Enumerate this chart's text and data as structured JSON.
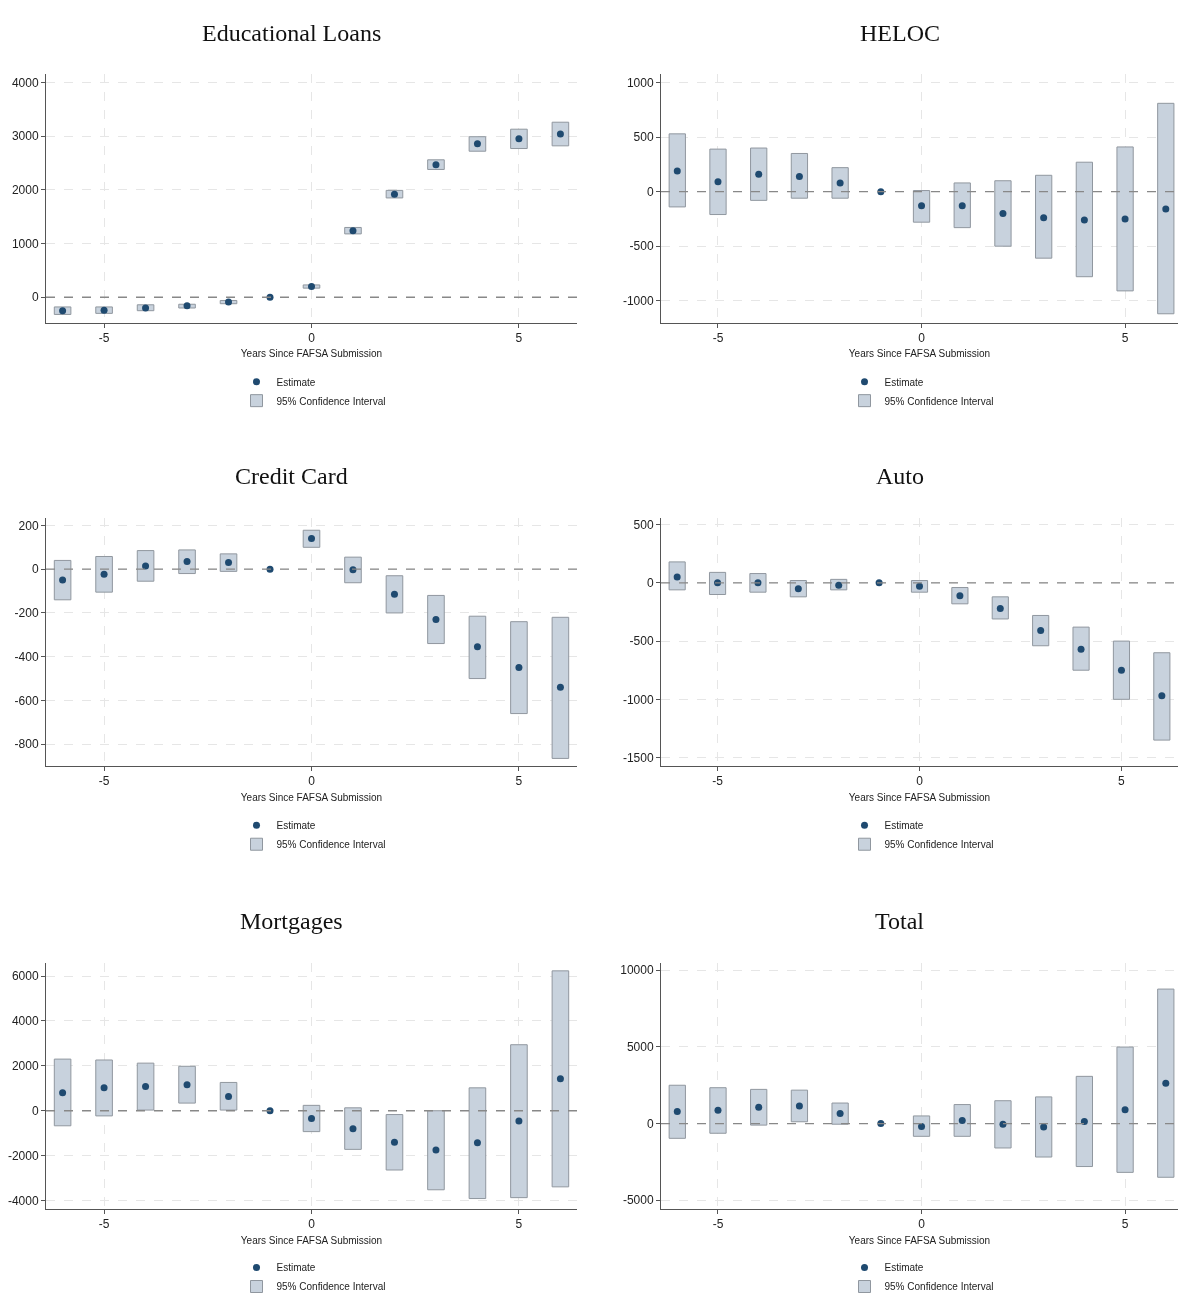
{
  "chart_data": [
    {
      "type": "bar",
      "title": "Educational Loans",
      "xlabel": "Years Since FAFSA Submission",
      "xlim": [
        -6.4,
        6.4
      ],
      "xticks": [
        -5,
        0,
        5
      ],
      "ylim": [
        -470,
        4150
      ],
      "yticks": [
        0,
        1000,
        2000,
        3000,
        4000
      ],
      "grid": true,
      "legend": "bottom",
      "ref_lines": [
        {
          "axis": "y",
          "value": 0,
          "color": "#888888",
          "line_style": "dashed"
        }
      ],
      "series": [
        {
          "name": "Estimate",
          "type": "scatter",
          "marker": "circle",
          "color": "#1f4a70",
          "x": [
            -6,
            -5,
            -4,
            -3,
            -2,
            -1,
            0,
            1,
            2,
            3,
            4,
            5,
            6
          ],
          "values": [
            -250,
            -240,
            -200,
            -160,
            -90,
            0,
            200,
            1240,
            1920,
            2470,
            2860,
            2950,
            3040
          ]
        },
        {
          "name": "95% Confidence Interval",
          "color": "#c8d2dd",
          "x": [
            -6,
            -5,
            -4,
            -3,
            -2,
            -1,
            0,
            1,
            2,
            3,
            4,
            5,
            6
          ],
          "base": [
            -320,
            -300,
            -250,
            -200,
            -120,
            null,
            170,
            1180,
            1850,
            2380,
            2720,
            2770,
            2820
          ],
          "values": [
            140,
            120,
            110,
            70,
            60,
            null,
            60,
            120,
            140,
            180,
            270,
            360,
            440
          ]
        }
      ]
    },
    {
      "type": "bar",
      "title": "HELOC",
      "xlabel": "Years Since FAFSA Submission",
      "xlim": [
        -6.4,
        6.3
      ],
      "xticks": [
        -5,
        0,
        5
      ],
      "ylim": [
        -1200,
        1075
      ],
      "yticks": [
        -1000,
        -500,
        0,
        500,
        1000
      ],
      "grid": true,
      "legend": "bottom",
      "ref_lines": [
        {
          "axis": "y",
          "value": 0,
          "color": "#888888",
          "line_style": "dashed"
        }
      ],
      "series": [
        {
          "name": "Estimate",
          "type": "scatter",
          "marker": "circle",
          "color": "#1f4a70",
          "x": [
            -6,
            -5,
            -4,
            -3,
            -2,
            -1,
            0,
            1,
            2,
            3,
            4,
            5,
            6
          ],
          "values": [
            190,
            90,
            160,
            140,
            80,
            0,
            -130,
            -130,
            -200,
            -240,
            -260,
            -250,
            -160
          ]
        },
        {
          "name": "95% Confidence Interval",
          "color": "#c8d2dd",
          "x": [
            -6,
            -5,
            -4,
            -3,
            -2,
            -1,
            0,
            1,
            2,
            3,
            4,
            5,
            6
          ],
          "base": [
            -140,
            -210,
            -80,
            -60,
            -60,
            null,
            -280,
            -330,
            -500,
            -610,
            -780,
            -910,
            -1120
          ],
          "values": [
            670,
            600,
            480,
            410,
            280,
            null,
            290,
            410,
            600,
            760,
            1050,
            1320,
            1930
          ]
        }
      ]
    },
    {
      "type": "bar",
      "title": "Credit Card",
      "xlabel": "Years Since FAFSA Submission",
      "xlim": [
        -6.4,
        6.4
      ],
      "xticks": [
        -5,
        0,
        5
      ],
      "ylim": [
        -900,
        234
      ],
      "yticks": [
        -800,
        -600,
        -400,
        -200,
        0,
        200
      ],
      "grid": true,
      "legend": "bottom",
      "ref_lines": [
        {
          "axis": "y",
          "value": 0,
          "color": "#888888",
          "line_style": "dashed"
        }
      ],
      "series": [
        {
          "name": "Estimate",
          "type": "scatter",
          "marker": "circle",
          "color": "#1f4a70",
          "x": [
            -6,
            -5,
            -4,
            -3,
            -2,
            -1,
            0,
            1,
            2,
            3,
            4,
            5,
            6
          ],
          "values": [
            -50,
            -23,
            15,
            35,
            30,
            0,
            140,
            -3,
            -115,
            -230,
            -355,
            -450,
            -540
          ]
        },
        {
          "name": "95% Confidence Interval",
          "color": "#c8d2dd",
          "x": [
            -6,
            -5,
            -4,
            -3,
            -2,
            -1,
            0,
            1,
            2,
            3,
            4,
            5,
            6
          ],
          "base": [
            -140,
            -105,
            -55,
            -20,
            -10,
            null,
            100,
            -62,
            -200,
            -340,
            -500,
            -660,
            -865
          ],
          "values": [
            180,
            163,
            140,
            108,
            80,
            null,
            78,
            117,
            170,
            220,
            285,
            420,
            645
          ]
        }
      ]
    },
    {
      "type": "bar",
      "title": "Auto",
      "xlabel": "Years Since FAFSA Submission",
      "xlim": [
        -6.4,
        6.4
      ],
      "xticks": [
        -5,
        0,
        5
      ],
      "ylim": [
        -1573,
        557
      ],
      "yticks": [
        -1500,
        -1000,
        -500,
        0,
        500
      ],
      "grid": true,
      "legend": "bottom",
      "ref_lines": [
        {
          "axis": "y",
          "value": 0,
          "color": "#888888",
          "line_style": "dashed"
        }
      ],
      "series": [
        {
          "name": "Estimate",
          "type": "scatter",
          "marker": "circle",
          "color": "#1f4a70",
          "x": [
            -6,
            -5,
            -4,
            -3,
            -2,
            -1,
            0,
            1,
            2,
            3,
            4,
            5,
            6
          ],
          "values": [
            50,
            0,
            0,
            -50,
            -20,
            0,
            -30,
            -110,
            -220,
            -410,
            -570,
            -750,
            -970
          ]
        },
        {
          "name": "95% Confidence Interval",
          "color": "#c8d2dd",
          "x": [
            -6,
            -5,
            -4,
            -3,
            -2,
            -1,
            0,
            1,
            2,
            3,
            4,
            5,
            6
          ],
          "base": [
            -60,
            -100,
            -80,
            -120,
            -60,
            null,
            -80,
            -180,
            -310,
            -540,
            -750,
            -1000,
            -1350
          ],
          "values": [
            240,
            190,
            160,
            140,
            90,
            null,
            100,
            140,
            190,
            260,
            370,
            500,
            750
          ]
        }
      ]
    },
    {
      "type": "bar",
      "title": "Mortgages",
      "xlabel": "Years Since FAFSA Submission",
      "xlim": [
        -6.4,
        6.4
      ],
      "xticks": [
        -5,
        0,
        5
      ],
      "ylim": [
        -4360,
        6600
      ],
      "yticks": [
        -4000,
        -2000,
        0,
        2000,
        4000,
        6000
      ],
      "grid": true,
      "legend": "bottom",
      "ref_lines": [
        {
          "axis": "y",
          "value": 0,
          "color": "#888888",
          "line_style": "dashed"
        }
      ],
      "series": [
        {
          "name": "Estimate",
          "type": "scatter",
          "marker": "circle",
          "color": "#1f4a70",
          "x": [
            -6,
            -5,
            -4,
            -3,
            -2,
            -1,
            0,
            1,
            2,
            3,
            4,
            5,
            6
          ],
          "values": [
            800,
            1020,
            1080,
            1160,
            630,
            0,
            -350,
            -800,
            -1400,
            -1750,
            -1430,
            -460,
            1430
          ]
        },
        {
          "name": "95% Confidence Interval",
          "color": "#c8d2dd",
          "x": [
            -6,
            -5,
            -4,
            -3,
            -2,
            -1,
            0,
            1,
            2,
            3,
            4,
            5,
            6
          ],
          "base": [
            -670,
            -230,
            30,
            340,
            30,
            null,
            -930,
            -1720,
            -2640,
            -3520,
            -3910,
            -3870,
            -3390
          ],
          "values": [
            2970,
            2490,
            2090,
            1640,
            1230,
            null,
            1170,
            1850,
            2470,
            3520,
            4930,
            6810,
            9620
          ]
        }
      ]
    },
    {
      "type": "bar",
      "title": "Total",
      "xlabel": "Years Since FAFSA Submission",
      "xlim": [
        -6.4,
        6.3
      ],
      "xticks": [
        -5,
        0,
        5
      ],
      "ylim": [
        -5545,
        10500
      ],
      "yticks": [
        -5000,
        0,
        5000,
        10000
      ],
      "grid": true,
      "legend": "bottom",
      "ref_lines": [
        {
          "axis": "y",
          "value": 0,
          "color": "#888888",
          "line_style": "dashed"
        }
      ],
      "series": [
        {
          "name": "Estimate",
          "type": "scatter",
          "marker": "circle",
          "color": "#1f4a70",
          "x": [
            -6,
            -5,
            -4,
            -3,
            -2,
            -1,
            0,
            1,
            2,
            3,
            4,
            5,
            6
          ],
          "values": [
            790,
            870,
            1060,
            1150,
            650,
            0,
            -190,
            200,
            -50,
            -230,
            130,
            900,
            2630
          ]
        },
        {
          "name": "95% Confidence Interval",
          "color": "#c8d2dd",
          "x": [
            -6,
            -5,
            -4,
            -3,
            -2,
            -1,
            0,
            1,
            2,
            3,
            4,
            5,
            6
          ],
          "base": [
            -960,
            -630,
            -100,
            120,
            -40,
            null,
            -830,
            -830,
            -1590,
            -2180,
            -2800,
            -3180,
            -3500
          ],
          "values": [
            3460,
            2970,
            2330,
            2060,
            1380,
            null,
            1330,
            2070,
            3080,
            3920,
            5880,
            8170,
            12270
          ]
        }
      ]
    }
  ]
}
